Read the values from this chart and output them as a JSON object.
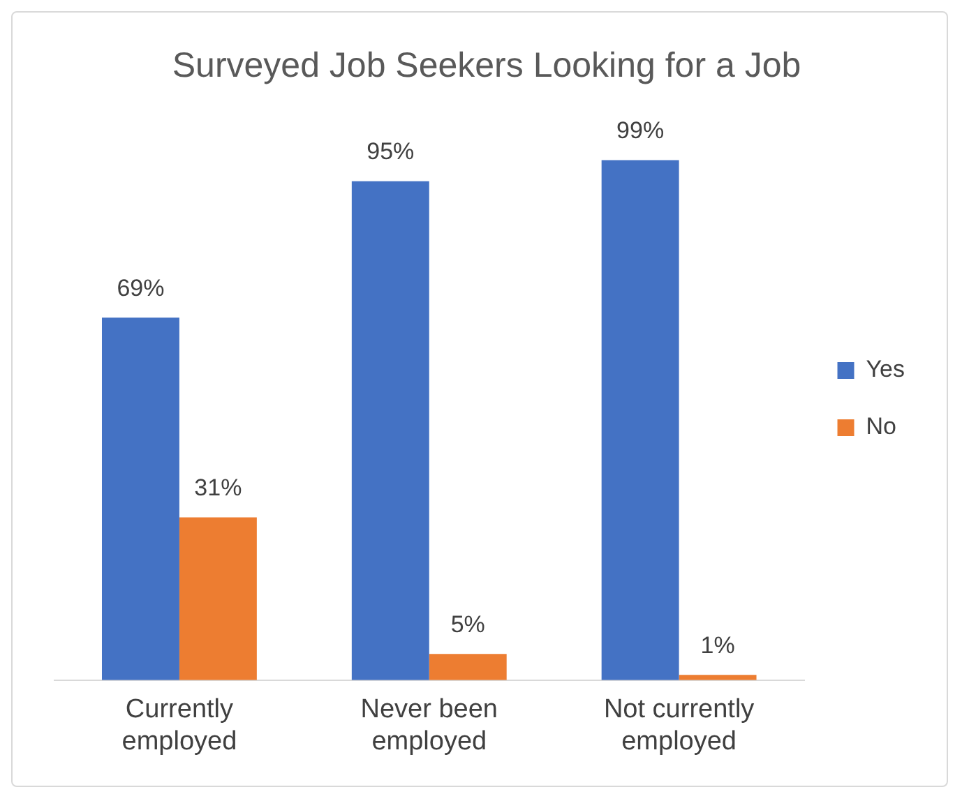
{
  "chart_data": {
    "type": "bar",
    "title": "Surveyed Job Seekers Looking for a Job",
    "categories": [
      "Currently employed",
      "Never been employed",
      "Not currently employed"
    ],
    "series": [
      {
        "name": "Yes",
        "color": "#4472c4",
        "values": [
          69,
          95,
          99
        ],
        "value_labels": [
          "69%",
          "95%",
          "99%"
        ]
      },
      {
        "name": "No",
        "color": "#ed7d31",
        "values": [
          31,
          5,
          1
        ],
        "value_labels": [
          "31%",
          "5%",
          "1%"
        ]
      }
    ],
    "legend": "right"
  }
}
